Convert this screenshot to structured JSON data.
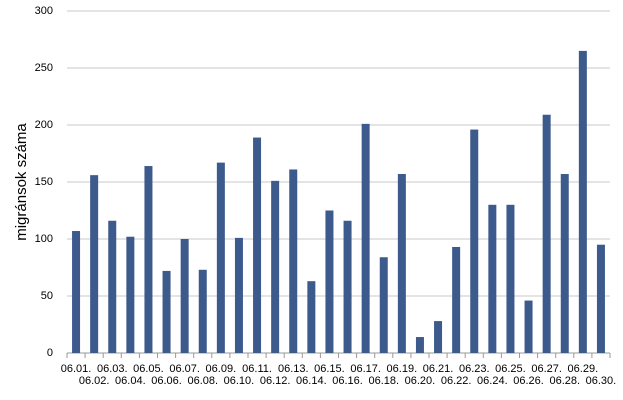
{
  "chart_data": {
    "type": "bar",
    "y_label": "migránsok száma",
    "categories": [
      "06.01.",
      "06.02.",
      "06.03.",
      "06.04.",
      "06.05.",
      "06.06.",
      "06.07.",
      "06.08.",
      "06.09.",
      "06.10.",
      "06.11.",
      "06.12.",
      "06.13.",
      "06.14.",
      "06.15.",
      "06.16.",
      "06.17.",
      "06.18.",
      "06.19.",
      "06.20.",
      "06.21.",
      "06.22.",
      "06.23.",
      "06.24.",
      "06.25.",
      "06.26.",
      "06.27.",
      "06.28.",
      "06.29.",
      "06.30."
    ],
    "values": [
      107,
      156,
      116,
      102,
      164,
      72,
      100,
      73,
      167,
      101,
      189,
      151,
      161,
      63,
      125,
      116,
      201,
      84,
      157,
      14,
      28,
      93,
      196,
      130,
      130,
      46,
      209,
      157,
      265,
      95
    ],
    "color": "#3c5a8c",
    "ylim": [
      0,
      300
    ],
    "yticks": [
      0,
      50,
      100,
      150,
      200,
      250,
      300
    ],
    "grid": true
  }
}
